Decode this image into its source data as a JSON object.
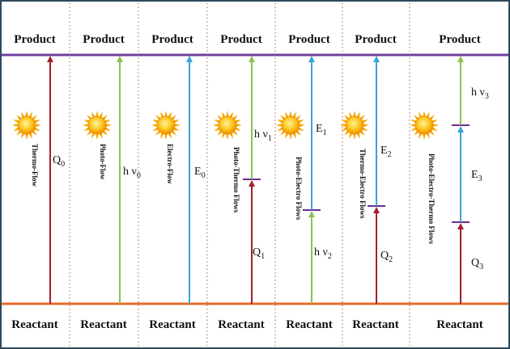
{
  "columns": [
    {
      "product": "Product",
      "reactant": "Reactant",
      "name": "Thermo-Flow",
      "segments": [
        {
          "color": "#a3202a",
          "label": {
            "symbol": "Q",
            "sub": "0"
          }
        }
      ]
    },
    {
      "product": "Product",
      "reactant": "Reactant",
      "name": "Photo-Flow",
      "segments": [
        {
          "color": "#8cc152",
          "label": {
            "symbol": "h ν",
            "sub": "0"
          }
        }
      ]
    },
    {
      "product": "Product",
      "reactant": "Reactant",
      "name": "Electro-Flow",
      "segments": [
        {
          "color": "#3aa3d8",
          "label": {
            "symbol": "E",
            "sub": "0"
          }
        }
      ]
    },
    {
      "product": "Product",
      "reactant": "Reactant",
      "name": "Photo-Thermo Flows",
      "segments": [
        {
          "color": "#a3202a",
          "label": {
            "symbol": "Q",
            "sub": "1"
          }
        },
        {
          "color": "#8cc152",
          "label": {
            "symbol": "h ν",
            "sub": "1"
          }
        }
      ]
    },
    {
      "product": "Product",
      "reactant": "Reactant",
      "name": "Photo-Electro Flows",
      "segments": [
        {
          "color": "#8cc152",
          "label": {
            "symbol": "h ν",
            "sub": "2"
          }
        },
        {
          "color": "#3aa3d8",
          "label": {
            "symbol": "E",
            "sub": "1"
          }
        }
      ]
    },
    {
      "product": "Product",
      "reactant": "Reactant",
      "name": "Thermo-Electro Flows",
      "segments": [
        {
          "color": "#a3202a",
          "label": {
            "symbol": "Q",
            "sub": "2"
          }
        },
        {
          "color": "#3aa3d8",
          "label": {
            "symbol": "E",
            "sub": "2"
          }
        }
      ]
    },
    {
      "product": "Product",
      "reactant": "Reactant",
      "name": "Photo-Electro-Thermo Flows",
      "segments": [
        {
          "color": "#a3202a",
          "label": {
            "symbol": "Q",
            "sub": "3"
          }
        },
        {
          "color": "#3aa3d8",
          "label": {
            "symbol": "E",
            "sub": "3"
          }
        },
        {
          "color": "#8cc152",
          "label": {
            "symbol": "h ν",
            "sub": "3"
          }
        }
      ]
    }
  ]
}
